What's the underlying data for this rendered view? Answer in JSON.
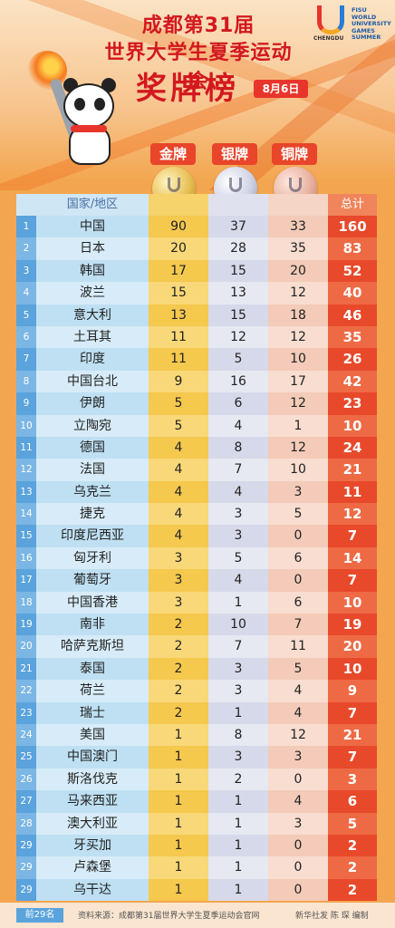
{
  "header": {
    "title_line1": "成都第31届",
    "title_line2": "世界大学生夏季运动会",
    "title_line3": "奖牌榜",
    "date_badge": "8月6日",
    "logo_city": "CHENGDU",
    "logo_fisu": [
      "FISU",
      "WORLD",
      "UNIVERSITY",
      "GAMES",
      "SUMMER"
    ]
  },
  "medal_labels": {
    "gold": "金牌",
    "silver": "银牌",
    "bronze": "铜牌"
  },
  "columns": {
    "country": "国家/地区",
    "total": "总计"
  },
  "colors": {
    "title_red": "#d3181e",
    "gold": "#f5c84e",
    "silver": "#d6d9e9",
    "bronze": "#f3cbb8",
    "total": "#e8492a",
    "rank_blue": "#5aa3dc"
  },
  "rows": [
    {
      "rank": "1",
      "country": "中国",
      "gold": "90",
      "silver": "37",
      "bronze": "33",
      "total": "160"
    },
    {
      "rank": "2",
      "country": "日本",
      "gold": "20",
      "silver": "28",
      "bronze": "35",
      "total": "83"
    },
    {
      "rank": "3",
      "country": "韩国",
      "gold": "17",
      "silver": "15",
      "bronze": "20",
      "total": "52"
    },
    {
      "rank": "4",
      "country": "波兰",
      "gold": "15",
      "silver": "13",
      "bronze": "12",
      "total": "40"
    },
    {
      "rank": "5",
      "country": "意大利",
      "gold": "13",
      "silver": "15",
      "bronze": "18",
      "total": "46"
    },
    {
      "rank": "6",
      "country": "土耳其",
      "gold": "11",
      "silver": "12",
      "bronze": "12",
      "total": "35"
    },
    {
      "rank": "7",
      "country": "印度",
      "gold": "11",
      "silver": "5",
      "bronze": "10",
      "total": "26"
    },
    {
      "rank": "8",
      "country": "中国台北",
      "gold": "9",
      "silver": "16",
      "bronze": "17",
      "total": "42"
    },
    {
      "rank": "9",
      "country": "伊朗",
      "gold": "5",
      "silver": "6",
      "bronze": "12",
      "total": "23"
    },
    {
      "rank": "10",
      "country": "立陶宛",
      "gold": "5",
      "silver": "4",
      "bronze": "1",
      "total": "10"
    },
    {
      "rank": "11",
      "country": "德国",
      "gold": "4",
      "silver": "8",
      "bronze": "12",
      "total": "24"
    },
    {
      "rank": "12",
      "country": "法国",
      "gold": "4",
      "silver": "7",
      "bronze": "10",
      "total": "21"
    },
    {
      "rank": "13",
      "country": "乌克兰",
      "gold": "4",
      "silver": "4",
      "bronze": "3",
      "total": "11"
    },
    {
      "rank": "14",
      "country": "捷克",
      "gold": "4",
      "silver": "3",
      "bronze": "5",
      "total": "12"
    },
    {
      "rank": "15",
      "country": "印度尼西亚",
      "gold": "4",
      "silver": "3",
      "bronze": "0",
      "total": "7"
    },
    {
      "rank": "16",
      "country": "匈牙利",
      "gold": "3",
      "silver": "5",
      "bronze": "6",
      "total": "14"
    },
    {
      "rank": "17",
      "country": "葡萄牙",
      "gold": "3",
      "silver": "4",
      "bronze": "0",
      "total": "7"
    },
    {
      "rank": "18",
      "country": "中国香港",
      "gold": "3",
      "silver": "1",
      "bronze": "6",
      "total": "10"
    },
    {
      "rank": "19",
      "country": "南非",
      "gold": "2",
      "silver": "10",
      "bronze": "7",
      "total": "19"
    },
    {
      "rank": "20",
      "country": "哈萨克斯坦",
      "gold": "2",
      "silver": "7",
      "bronze": "11",
      "total": "20"
    },
    {
      "rank": "21",
      "country": "泰国",
      "gold": "2",
      "silver": "3",
      "bronze": "5",
      "total": "10"
    },
    {
      "rank": "22",
      "country": "荷兰",
      "gold": "2",
      "silver": "3",
      "bronze": "4",
      "total": "9"
    },
    {
      "rank": "23",
      "country": "瑞士",
      "gold": "2",
      "silver": "1",
      "bronze": "4",
      "total": "7"
    },
    {
      "rank": "24",
      "country": "美国",
      "gold": "1",
      "silver": "8",
      "bronze": "12",
      "total": "21"
    },
    {
      "rank": "25",
      "country": "中国澳门",
      "gold": "1",
      "silver": "3",
      "bronze": "3",
      "total": "7"
    },
    {
      "rank": "26",
      "country": "斯洛伐克",
      "gold": "1",
      "silver": "2",
      "bronze": "0",
      "total": "3"
    },
    {
      "rank": "27",
      "country": "马来西亚",
      "gold": "1",
      "silver": "1",
      "bronze": "4",
      "total": "6"
    },
    {
      "rank": "28",
      "country": "澳大利亚",
      "gold": "1",
      "silver": "1",
      "bronze": "3",
      "total": "5"
    },
    {
      "rank": "29",
      "country": "牙买加",
      "gold": "1",
      "silver": "1",
      "bronze": "0",
      "total": "2"
    },
    {
      "rank": "29",
      "country": "卢森堡",
      "gold": "1",
      "silver": "1",
      "bronze": "0",
      "total": "2"
    },
    {
      "rank": "29",
      "country": "乌干达",
      "gold": "1",
      "silver": "1",
      "bronze": "0",
      "total": "2"
    }
  ],
  "footer": {
    "rank_tag": "前29名",
    "source": "资料来源：成都第31届世界大学生夏季运动会官网",
    "credit": "新华社发 陈 琛 编制"
  }
}
